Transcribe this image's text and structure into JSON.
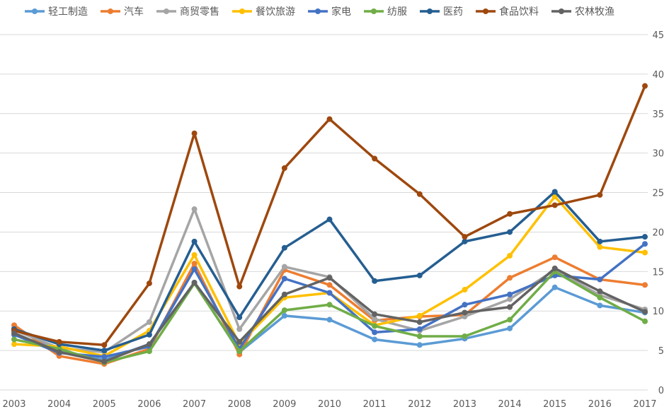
{
  "chart_data": {
    "type": "line",
    "title": "",
    "xlabel": "",
    "ylabel": "",
    "x": [
      "2003",
      "2004",
      "2005",
      "2006",
      "2007",
      "2008",
      "2009",
      "2010",
      "2011",
      "2012",
      "2013",
      "2014",
      "2015",
      "2016",
      "2017"
    ],
    "ylim": [
      0,
      45
    ],
    "yticks": [
      0,
      5,
      10,
      15,
      20,
      25,
      30,
      35,
      40,
      45
    ],
    "y_axis_position": "right",
    "grid": true,
    "legend_position": "top",
    "series": [
      {
        "name": "轻工制造",
        "color": "#5B9BD5",
        "values": [
          7.8,
          5.0,
          3.8,
          5.8,
          13.6,
          4.8,
          9.4,
          8.9,
          6.4,
          5.7,
          6.5,
          7.8,
          13.0,
          10.7,
          9.8
        ]
      },
      {
        "name": "汽车",
        "color": "#ED7D31",
        "values": [
          8.2,
          4.3,
          3.3,
          5.2,
          16.0,
          4.5,
          15.2,
          13.3,
          8.8,
          9.3,
          9.5,
          14.2,
          16.8,
          14.0,
          13.3
        ]
      },
      {
        "name": "商贸零售",
        "color": "#A5A5A5",
        "values": [
          7.6,
          5.3,
          4.8,
          8.6,
          22.9,
          7.7,
          15.6,
          14.3,
          9.0,
          7.5,
          9.3,
          11.5,
          15.2,
          12.0,
          10.2
        ]
      },
      {
        "name": "餐饮旅游",
        "color": "#FFC000",
        "values": [
          5.8,
          5.5,
          4.3,
          7.5,
          17.1,
          5.8,
          11.7,
          12.3,
          8.2,
          9.4,
          12.7,
          17.0,
          24.5,
          18.1,
          17.4
        ]
      },
      {
        "name": "家电",
        "color": "#4472C4",
        "values": [
          7.0,
          4.7,
          4.2,
          5.5,
          15.3,
          5.2,
          14.1,
          12.3,
          7.3,
          7.7,
          10.8,
          12.1,
          14.5,
          14.0,
          18.5
        ]
      },
      {
        "name": "纺服",
        "color": "#70AD47",
        "values": [
          6.4,
          5.2,
          3.5,
          4.9,
          13.5,
          4.9,
          10.1,
          10.8,
          8.1,
          6.8,
          6.8,
          8.9,
          15.0,
          11.7,
          8.7
        ]
      },
      {
        "name": "医药",
        "color": "#255E91",
        "values": [
          7.7,
          5.8,
          5.0,
          7.0,
          18.8,
          9.2,
          18.0,
          21.6,
          13.8,
          14.5,
          18.8,
          20.0,
          25.1,
          18.8,
          19.4
        ]
      },
      {
        "name": "食品饮料",
        "color": "#9E480E",
        "values": [
          7.5,
          6.1,
          5.7,
          13.5,
          32.5,
          13.1,
          28.1,
          34.3,
          29.3,
          24.8,
          19.4,
          22.3,
          23.4,
          24.7,
          38.5
        ]
      },
      {
        "name": "农林牧渔",
        "color": "#636363",
        "values": [
          7.2,
          4.8,
          3.6,
          5.8,
          13.6,
          6.1,
          12.1,
          14.2,
          9.6,
          8.6,
          9.8,
          10.5,
          15.4,
          12.5,
          9.9
        ]
      }
    ]
  }
}
